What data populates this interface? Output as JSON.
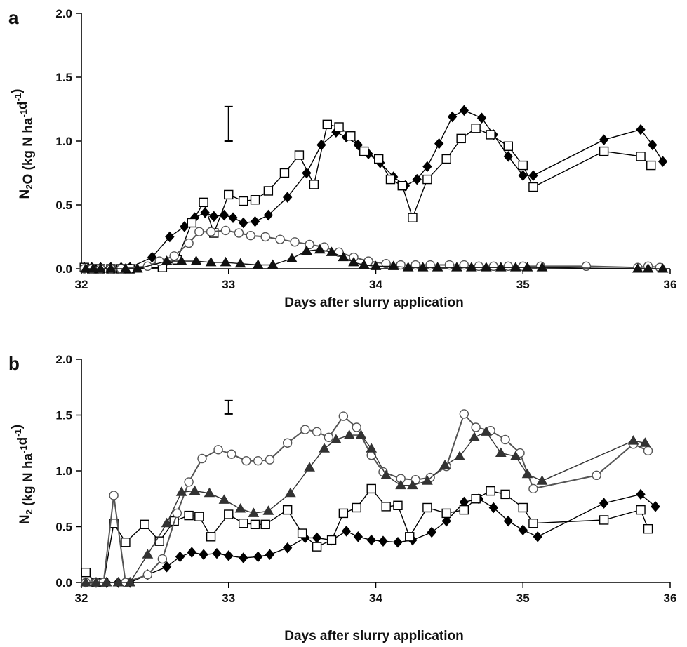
{
  "chart_data": [
    {
      "type": "line",
      "panel_label": "a",
      "xlabel": "Days after slurry application",
      "ylabel": {
        "prefix": "N",
        "sub": "2",
        "rest": "O (kg N ha",
        "exp1": "-1",
        "mid": "d",
        "exp2": "-1",
        "end": ")"
      },
      "xlim": [
        32,
        36
      ],
      "ylim": [
        0,
        2.0
      ],
      "x_ticks": [
        "32",
        "33",
        "34",
        "35",
        "36"
      ],
      "y_ticks": [
        "0.0",
        "0.5",
        "1.0",
        "1.5",
        "2.0"
      ],
      "error_bar": {
        "x": 33.0,
        "low": 1.0,
        "high": 1.27
      },
      "series": [
        {
          "marker": "diamond-filled",
          "color": "#000000",
          "x": [
            32.02,
            32.07,
            32.13,
            32.2,
            32.27,
            32.33,
            32.48,
            32.6,
            32.7,
            32.77,
            32.84,
            32.9,
            32.97,
            33.03,
            33.1,
            33.18,
            33.27,
            33.4,
            33.53,
            33.63,
            33.73,
            33.8,
            33.88,
            33.95,
            34.03,
            34.12,
            34.2,
            34.28,
            34.35,
            34.43,
            34.52,
            34.6,
            34.72,
            34.8,
            34.9,
            35.0,
            35.07,
            35.55,
            35.8,
            35.88,
            35.95
          ],
          "y": [
            0.01,
            0.01,
            0.01,
            0.01,
            0.01,
            0.01,
            0.09,
            0.25,
            0.33,
            0.4,
            0.44,
            0.41,
            0.42,
            0.4,
            0.36,
            0.37,
            0.42,
            0.56,
            0.75,
            0.97,
            1.07,
            1.03,
            0.97,
            0.9,
            0.83,
            0.72,
            0.65,
            0.7,
            0.8,
            0.98,
            1.19,
            1.24,
            1.18,
            1.05,
            0.88,
            0.73,
            0.73,
            1.01,
            1.09,
            0.97,
            0.84
          ]
        },
        {
          "marker": "square-open",
          "color": "#000000",
          "x": [
            32.02,
            32.07,
            32.13,
            32.2,
            32.27,
            32.33,
            32.55,
            32.65,
            32.75,
            32.83,
            32.9,
            33.0,
            33.1,
            33.18,
            33.27,
            33.38,
            33.48,
            33.58,
            33.67,
            33.75,
            33.83,
            33.92,
            34.02,
            34.1,
            34.18,
            34.25,
            34.35,
            34.48,
            34.58,
            34.68,
            34.78,
            34.9,
            35.0,
            35.07,
            35.55,
            35.8,
            35.87
          ],
          "y": [
            0.01,
            0.0,
            0.0,
            0.0,
            0.0,
            0.0,
            0.01,
            0.07,
            0.36,
            0.52,
            0.28,
            0.58,
            0.53,
            0.54,
            0.61,
            0.75,
            0.89,
            0.66,
            1.13,
            1.11,
            1.04,
            0.92,
            0.86,
            0.7,
            0.65,
            0.4,
            0.7,
            0.86,
            1.02,
            1.1,
            1.05,
            0.96,
            0.81,
            0.64,
            0.92,
            0.88,
            0.81
          ]
        },
        {
          "marker": "circle-open",
          "color": "#555555",
          "x": [
            32.02,
            32.07,
            32.13,
            32.2,
            32.27,
            32.45,
            32.53,
            32.63,
            32.73,
            32.8,
            32.88,
            32.98,
            33.07,
            33.15,
            33.25,
            33.35,
            33.45,
            33.55,
            33.65,
            33.75,
            33.85,
            33.95,
            34.07,
            34.17,
            34.27,
            34.37,
            34.5,
            34.6,
            34.7,
            34.8,
            34.9,
            35.0,
            35.12,
            35.43,
            35.78,
            35.85,
            35.93
          ],
          "y": [
            0.0,
            0.0,
            0.0,
            0.0,
            0.0,
            0.02,
            0.06,
            0.1,
            0.2,
            0.29,
            0.29,
            0.3,
            0.28,
            0.26,
            0.25,
            0.23,
            0.21,
            0.19,
            0.17,
            0.13,
            0.09,
            0.06,
            0.04,
            0.03,
            0.03,
            0.03,
            0.03,
            0.03,
            0.02,
            0.02,
            0.02,
            0.02,
            0.02,
            0.02,
            0.01,
            0.02,
            0.01
          ]
        },
        {
          "marker": "triangle-filled",
          "color": "#111111",
          "x": [
            32.03,
            32.08,
            32.13,
            32.2,
            32.3,
            32.38,
            32.58,
            32.68,
            32.78,
            32.88,
            32.98,
            33.08,
            33.2,
            33.3,
            33.43,
            33.53,
            33.62,
            33.7,
            33.78,
            33.85,
            33.92,
            34.0,
            34.12,
            34.22,
            34.32,
            34.42,
            34.55,
            34.65,
            34.75,
            34.85,
            34.95,
            35.03,
            35.13,
            35.78,
            35.85,
            35.95
          ],
          "y": [
            0.0,
            0.0,
            0.0,
            0.0,
            0.0,
            0.0,
            0.06,
            0.06,
            0.06,
            0.05,
            0.05,
            0.04,
            0.03,
            0.03,
            0.08,
            0.14,
            0.15,
            0.13,
            0.09,
            0.05,
            0.03,
            0.02,
            0.02,
            0.01,
            0.01,
            0.01,
            0.01,
            0.01,
            0.01,
            0.01,
            0.01,
            0.01,
            0.01,
            0.0,
            0.0,
            0.0
          ]
        }
      ]
    },
    {
      "type": "line",
      "panel_label": "b",
      "xlabel": "Days after slurry application",
      "ylabel": {
        "prefix": "N",
        "sub": "2",
        "rest": " (kg N ha",
        "exp1": "-1",
        "mid": "d",
        "exp2": "-1",
        "end": ")"
      },
      "xlim": [
        32,
        36
      ],
      "ylim": [
        0,
        2.0
      ],
      "x_ticks": [
        "32",
        "33",
        "34",
        "35",
        "36"
      ],
      "y_ticks": [
        "0.0",
        "0.5",
        "1.0",
        "1.5",
        "2.0"
      ],
      "error_bar": {
        "x": 33.0,
        "low": 1.51,
        "high": 1.63
      },
      "series": [
        {
          "marker": "diamond-filled",
          "color": "#000000",
          "x": [
            32.03,
            32.1,
            32.17,
            32.25,
            32.33,
            32.45,
            32.58,
            32.67,
            32.75,
            32.83,
            32.92,
            33.0,
            33.1,
            33.2,
            33.28,
            33.4,
            33.52,
            33.6,
            33.7,
            33.8,
            33.88,
            33.97,
            34.05,
            34.15,
            34.25,
            34.38,
            34.48,
            34.6,
            34.7,
            34.8,
            34.9,
            35.0,
            35.1,
            35.55,
            35.8,
            35.9
          ],
          "y": [
            0.0,
            0.0,
            0.0,
            0.0,
            0.0,
            0.07,
            0.14,
            0.23,
            0.27,
            0.25,
            0.26,
            0.24,
            0.22,
            0.23,
            0.25,
            0.31,
            0.4,
            0.4,
            0.38,
            0.46,
            0.41,
            0.38,
            0.37,
            0.36,
            0.38,
            0.45,
            0.55,
            0.72,
            0.75,
            0.67,
            0.55,
            0.47,
            0.41,
            0.71,
            0.79,
            0.68
          ]
        },
        {
          "marker": "square-open",
          "color": "#000000",
          "x": [
            32.03,
            32.1,
            32.15,
            32.22,
            32.3,
            32.43,
            32.53,
            32.63,
            32.73,
            32.8,
            32.88,
            33.0,
            33.1,
            33.18,
            33.25,
            33.4,
            33.5,
            33.6,
            33.7,
            33.78,
            33.87,
            33.97,
            34.07,
            34.15,
            34.23,
            34.35,
            34.48,
            34.6,
            34.68,
            34.78,
            34.88,
            35.0,
            35.07,
            35.55,
            35.8,
            35.85
          ],
          "y": [
            0.09,
            0.0,
            0.0,
            0.53,
            0.36,
            0.52,
            0.37,
            0.55,
            0.6,
            0.59,
            0.41,
            0.61,
            0.53,
            0.52,
            0.52,
            0.65,
            0.44,
            0.32,
            0.38,
            0.62,
            0.67,
            0.84,
            0.68,
            0.69,
            0.41,
            0.67,
            0.62,
            0.65,
            0.75,
            0.82,
            0.79,
            0.67,
            0.53,
            0.56,
            0.65,
            0.48
          ]
        },
        {
          "marker": "circle-open",
          "color": "#555555",
          "x": [
            32.03,
            32.1,
            32.15,
            32.22,
            32.3,
            32.45,
            32.55,
            32.65,
            32.73,
            32.82,
            32.93,
            33.02,
            33.12,
            33.2,
            33.28,
            33.4,
            33.52,
            33.6,
            33.68,
            33.78,
            33.87,
            33.97,
            34.05,
            34.17,
            34.27,
            34.37,
            34.48,
            34.6,
            34.68,
            34.78,
            34.88,
            34.98,
            35.07,
            35.5,
            35.75,
            35.85
          ],
          "y": [
            0.0,
            0.0,
            0.0,
            0.78,
            0.0,
            0.07,
            0.21,
            0.62,
            0.9,
            1.11,
            1.19,
            1.15,
            1.09,
            1.09,
            1.1,
            1.25,
            1.37,
            1.35,
            1.3,
            1.49,
            1.39,
            1.14,
            0.99,
            0.93,
            0.92,
            0.94,
            1.04,
            1.51,
            1.39,
            1.36,
            1.28,
            1.16,
            0.84,
            0.96,
            1.24,
            1.18
          ]
        },
        {
          "marker": "triangle-filled",
          "color": "#333333",
          "x": [
            32.03,
            32.1,
            32.17,
            32.25,
            32.33,
            32.45,
            32.58,
            32.68,
            32.77,
            32.87,
            32.97,
            33.08,
            33.17,
            33.27,
            33.42,
            33.55,
            33.65,
            33.73,
            33.82,
            33.9,
            33.97,
            34.07,
            34.17,
            34.25,
            34.35,
            34.47,
            34.57,
            34.67,
            34.75,
            34.85,
            34.95,
            35.03,
            35.13,
            35.75,
            35.83
          ],
          "y": [
            0.0,
            0.0,
            0.0,
            0.0,
            0.0,
            0.25,
            0.53,
            0.81,
            0.82,
            0.8,
            0.74,
            0.66,
            0.62,
            0.64,
            0.8,
            1.03,
            1.2,
            1.28,
            1.32,
            1.32,
            1.2,
            0.96,
            0.87,
            0.87,
            0.91,
            1.05,
            1.13,
            1.3,
            1.35,
            1.16,
            1.13,
            0.97,
            0.91,
            1.27,
            1.25
          ]
        }
      ]
    }
  ]
}
